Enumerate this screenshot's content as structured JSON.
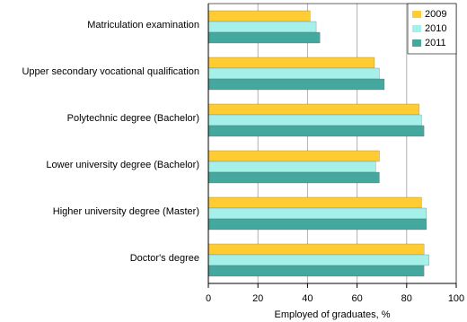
{
  "chart_data": {
    "type": "bar",
    "orientation": "horizontal",
    "x_label": "Employed of graduates, %",
    "categories": [
      "Matriculation examination",
      "Upper secondary vocational qualification",
      "Polytechnic degree (Bachelor)",
      "Lower university degree (Bachelor)",
      "Higher university degree (Master)",
      "Doctor's degree"
    ],
    "series": [
      {
        "name": "2009",
        "color": "#ffcc33",
        "values": [
          41,
          67,
          85,
          69,
          86,
          87
        ]
      },
      {
        "name": "2010",
        "color": "#a6f0ea",
        "values": [
          43.5,
          69,
          86,
          67.5,
          88,
          89
        ]
      },
      {
        "name": "2011",
        "color": "#44a89f",
        "values": [
          45,
          71,
          87,
          69,
          88,
          87
        ]
      }
    ],
    "xlim": [
      0,
      100
    ],
    "xticks": [
      0,
      20,
      40,
      60,
      80,
      100
    ],
    "grid": true,
    "legend": "top-right"
  }
}
